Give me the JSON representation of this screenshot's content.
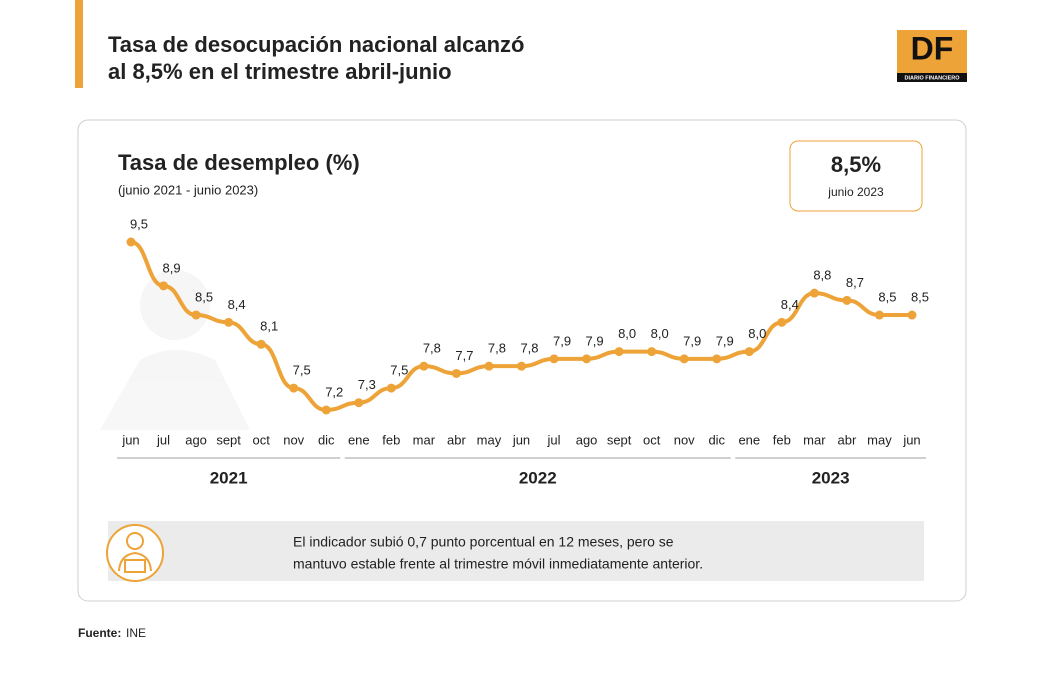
{
  "header": {
    "title_lines": [
      "Tasa de desocupación nacional alcanzó",
      "al 8,5% en el trimestre abril-junio"
    ],
    "logo": {
      "text": "DF",
      "subtext": "DIARIO FINANCIERO"
    }
  },
  "chart_data": {
    "type": "line",
    "title": "Tasa de desempleo (%)",
    "subtitle": "(junio 2021 - junio 2023)",
    "categories": [
      "jun",
      "jul",
      "ago",
      "sept",
      "oct",
      "nov",
      "dic",
      "ene",
      "feb",
      "mar",
      "abr",
      "may",
      "jun",
      "jul",
      "ago",
      "sept",
      "oct",
      "nov",
      "dic",
      "ene",
      "feb",
      "mar",
      "abr",
      "may",
      "jun"
    ],
    "category_groups": [
      {
        "label": "2021",
        "span": 7
      },
      {
        "label": "2022",
        "span": 12
      },
      {
        "label": "2023",
        "span": 6
      }
    ],
    "values": [
      9.5,
      8.9,
      8.5,
      8.4,
      8.1,
      7.5,
      7.2,
      7.3,
      7.5,
      7.8,
      7.7,
      7.8,
      7.8,
      7.9,
      7.9,
      8.0,
      8.0,
      7.9,
      7.9,
      8.0,
      8.4,
      8.8,
      8.7,
      8.5,
      8.5
    ],
    "value_labels": [
      "9,5",
      "8,9",
      "8,5",
      "8,4",
      "8,1",
      "7,5",
      "7,2",
      "7,3",
      "7,5",
      "7,8",
      "7,7",
      "7,8",
      "7,8",
      "7,9",
      "7,9",
      "8,0",
      "8,0",
      "7,9",
      "7,9",
      "8,0",
      "8,4",
      "8,8",
      "8,7",
      "8,5",
      "8,5"
    ],
    "color": "#eda337"
  },
  "callout": {
    "value": "8,5%",
    "label": "junio 2023"
  },
  "note": [
    "El indicador subió 0,7 punto porcentual en 12 meses, pero se",
    "mantuvo estable frente al trimestre móvil inmediatamente anterior."
  ],
  "source": {
    "label": "Fuente:",
    "value": "INE"
  }
}
